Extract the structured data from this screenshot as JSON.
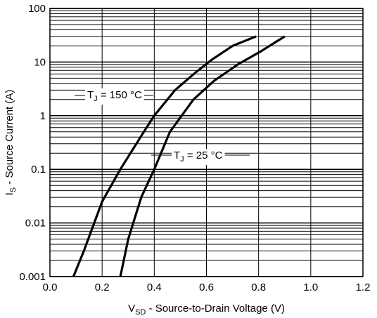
{
  "chart_data": {
    "type": "line",
    "x_axis": {
      "label_main": "V",
      "label_sub": "SD",
      "label_rest": " - Source-to-Drain Voltage (V)",
      "range": [
        0.0,
        1.2
      ],
      "ticks": [
        "0.0",
        "0.2",
        "0.4",
        "0.6",
        "0.8",
        "1.0",
        "1.2"
      ],
      "tick_values": [
        0.0,
        0.2,
        0.4,
        0.6,
        0.8,
        1.0,
        1.2
      ]
    },
    "y_axis": {
      "label_main": "I",
      "label_sub": "S",
      "label_rest": " - Source Current (A)",
      "scale": "log",
      "range": [
        0.001,
        100
      ],
      "ticks": [
        "0.001",
        "0.01",
        "0.1",
        "1",
        "10",
        "100"
      ],
      "tick_values": [
        0.001,
        0.01,
        0.1,
        1,
        10,
        100
      ]
    },
    "grid": true,
    "series": [
      {
        "name_main": "T",
        "name_sub": "J",
        "name_rest": " = 150 °C",
        "x": [
          0.09,
          0.13,
          0.2,
          0.27,
          0.36,
          0.4,
          0.48,
          0.56,
          0.62,
          0.7,
          0.79
        ],
        "y": [
          0.001,
          0.003,
          0.025,
          0.1,
          0.5,
          1,
          3,
          6.5,
          11,
          20,
          30
        ]
      },
      {
        "name_main": "T",
        "name_sub": "J",
        "name_rest": " = 25 °C",
        "x": [
          0.27,
          0.3,
          0.35,
          0.4,
          0.46,
          0.55,
          0.63,
          0.72,
          0.81,
          0.9
        ],
        "y": [
          0.001,
          0.005,
          0.03,
          0.1,
          0.5,
          2,
          4.5,
          9,
          16,
          30
        ]
      }
    ]
  }
}
